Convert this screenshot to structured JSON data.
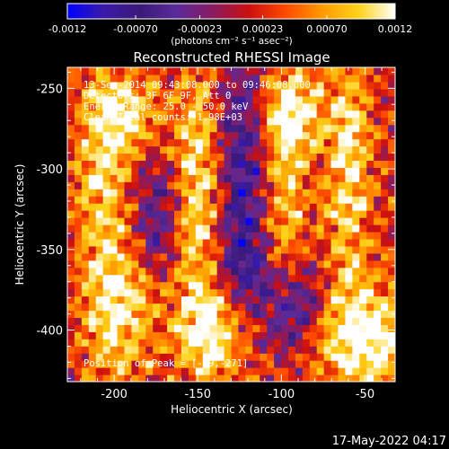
{
  "colorbar": {
    "tick_labels": [
      "-0.0012",
      "-0.00070",
      "-0.00023",
      "0.00023",
      "0.00070",
      "0.0012"
    ],
    "tick_values": [
      -0.0012,
      -0.0007,
      -0.00023,
      0.00023,
      0.0007,
      0.0012
    ],
    "units_label": "(photons cm⁻² s⁻¹ asec⁻²)",
    "range": [
      -0.0012,
      0.0012
    ],
    "colors": [
      "#0000ff",
      "#3a1aa8",
      "#3a1a78",
      "#5a2a9a",
      "#8a1a60",
      "#cc1010",
      "#ff4a00",
      "#ff9a00",
      "#ffd21a",
      "#ffffff"
    ]
  },
  "overlay": {
    "line1": "13-Sep-2014 09:43:08.000 to 09:46:08.000",
    "line2": "Detectors: 3F 6F 9F, Att 0",
    "line3": "Energy Range: 25.0 - 50.0 keV",
    "line4": "Clean     Total counts: 1.98E+03",
    "peak": "Position of Peak = [-89,-271]"
  },
  "footer": {
    "timestamp": "17-May-2022 04:17"
  },
  "chart_data": {
    "type": "heatmap",
    "title": "Reconstructed RHESSI Image",
    "xlabel": "Heliocentric X (arcsec)",
    "ylabel": "Heliocentric Y (arcsec)",
    "xlim": [
      -228,
      -32
    ],
    "ylim": [
      -432,
      -237
    ],
    "x_ticks": [
      -200,
      -150,
      -100,
      -50
    ],
    "x_tick_labels": [
      "-200",
      "-150",
      "-100",
      "-50"
    ],
    "y_ticks": [
      -250,
      -300,
      -350,
      -400
    ],
    "y_tick_labels": [
      "-250",
      "-300",
      "-350",
      "-400"
    ],
    "peak_position": [
      -89,
      -271
    ],
    "hot_regions": [
      {
        "x": -206,
        "y": -300,
        "sx": 12,
        "sy": 55,
        "amp": 0.7
      },
      {
        "x": -195,
        "y": -390,
        "sx": 16,
        "sy": 30,
        "amp": 0.75
      },
      {
        "x": -150,
        "y": -310,
        "sx": 10,
        "sy": 60,
        "amp": 0.75
      },
      {
        "x": -140,
        "y": -400,
        "sx": 14,
        "sy": 25,
        "amp": 0.85
      },
      {
        "x": -95,
        "y": -265,
        "sx": 14,
        "sy": 18,
        "amp": 0.9
      },
      {
        "x": -100,
        "y": -320,
        "sx": 10,
        "sy": 45,
        "amp": 0.7
      },
      {
        "x": -60,
        "y": -300,
        "sx": 10,
        "sy": 55,
        "amp": 0.75
      },
      {
        "x": -50,
        "y": -405,
        "sx": 20,
        "sy": 25,
        "amp": 1.0
      },
      {
        "x": -190,
        "y": -265,
        "sx": 15,
        "sy": 15,
        "amp": 0.6
      }
    ],
    "cold_regions": [
      {
        "x": -120,
        "y": -290,
        "sx": 12,
        "sy": 45,
        "amp": 0.8
      },
      {
        "x": -175,
        "y": -330,
        "sx": 10,
        "sy": 25,
        "amp": 0.6
      },
      {
        "x": -95,
        "y": -385,
        "sx": 15,
        "sy": 20,
        "amp": 0.7
      },
      {
        "x": -125,
        "y": -360,
        "sx": 12,
        "sy": 20,
        "amp": 0.6
      }
    ]
  }
}
